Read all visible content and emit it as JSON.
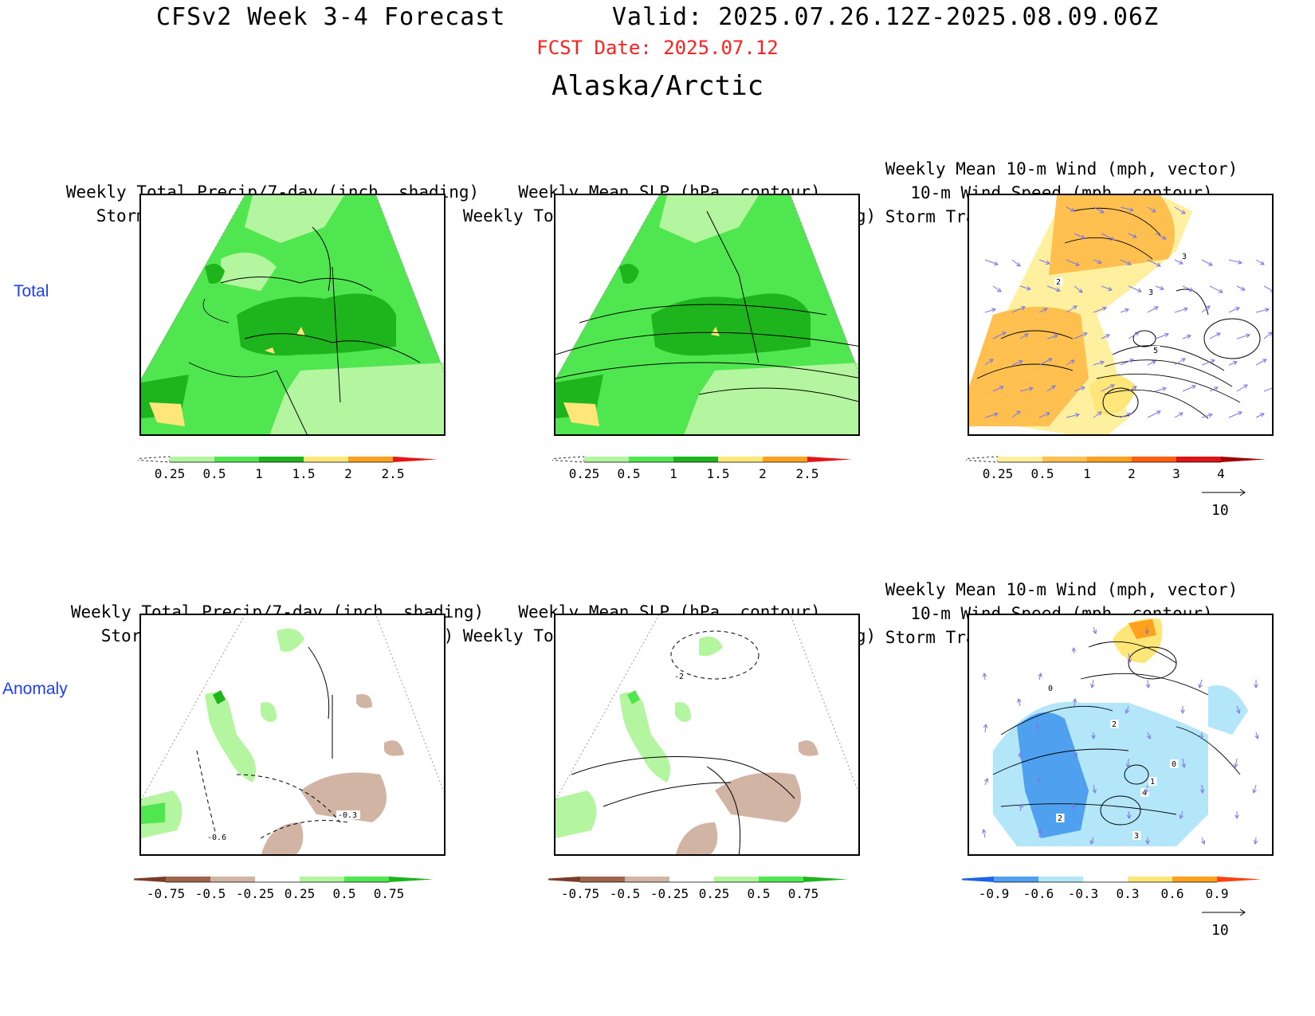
{
  "header": {
    "title": "CFSv2 Week 3-4 Forecast       Valid: 2025.07.26.12Z-2025.08.09.06Z",
    "fcst_date": "FCST Date: 2025.07.12",
    "region": "Alaska/Arctic"
  },
  "rows": {
    "total": "Total",
    "anomaly": "Anomaly"
  },
  "panels": {
    "total_precip": [
      "Weekly Total Precip/7-day (inch, shading)",
      "Storm Track Density/7-day (contour)"
    ],
    "total_slp": [
      "Weekly Mean SLP (hPa, contour)",
      "Weekly Total Precip/7-day (inch, shading)"
    ],
    "total_wind": [
      "Weekly Mean 10-m Wind (mph, vector)",
      "10-m Wind Speed (mph, contour)",
      "Storm Track Density/7-day (shading)"
    ],
    "anom_precip": [
      "Weekly Total Precip/7-day (inch, shading)",
      "Storm Track Density/7-day (contour)"
    ],
    "anom_slp": [
      "Weekly Mean SLP (hPa, contour)",
      "Weekly Total Precip/7-day (inch, shading)"
    ],
    "anom_wind": [
      "Weekly Mean 10-m Wind (mph, vector)",
      "10-m Wind Speed (mph, contour)",
      "Storm Track Density/7-day (shading)"
    ]
  },
  "colorbars": {
    "precip_total": {
      "ticks": [
        "0.25",
        "0.5",
        "1",
        "1.5",
        "2",
        "2.5"
      ],
      "colors": [
        "#ffffff",
        "#b4f5a0",
        "#50e650",
        "#1eb41e",
        "#ffe678",
        "#ffa01e",
        "#e61414"
      ]
    },
    "storm_total": {
      "ticks": [
        "0.25",
        "0.5",
        "1",
        "2",
        "3",
        "4"
      ],
      "colors": [
        "#ffffff",
        "#fff0a0",
        "#ffc050",
        "#ffa020",
        "#ff6010",
        "#dc1414",
        "#a00000"
      ]
    },
    "precip_anom": {
      "ticks": [
        "-0.75",
        "-0.5",
        "-0.25",
        "0.25",
        "0.5",
        "0.75"
      ],
      "colors": [
        "#783c28",
        "#a0644b",
        "#d2b4a5",
        "#ffffff",
        "#b4f5a0",
        "#50e650",
        "#1eb41e"
      ]
    },
    "storm_anom": {
      "ticks": [
        "-0.9",
        "-0.6",
        "-0.3",
        "0.3",
        "0.6",
        "0.9"
      ],
      "colors": [
        "#1e64e6",
        "#50a0f0",
        "#b4e6fa",
        "#ffffff",
        "#ffe678",
        "#ffa01e",
        "#ff4010"
      ]
    }
  },
  "contour_labels": {
    "anom_precip": [
      "-0.3",
      "-0.6"
    ],
    "anom_slp": [
      "-2"
    ],
    "total_wind": [
      "3",
      "3",
      "5",
      "2"
    ],
    "anom_wind": [
      "0",
      "2",
      "0",
      "1",
      "4",
      "2",
      "3"
    ]
  },
  "vector_ref": "10"
}
